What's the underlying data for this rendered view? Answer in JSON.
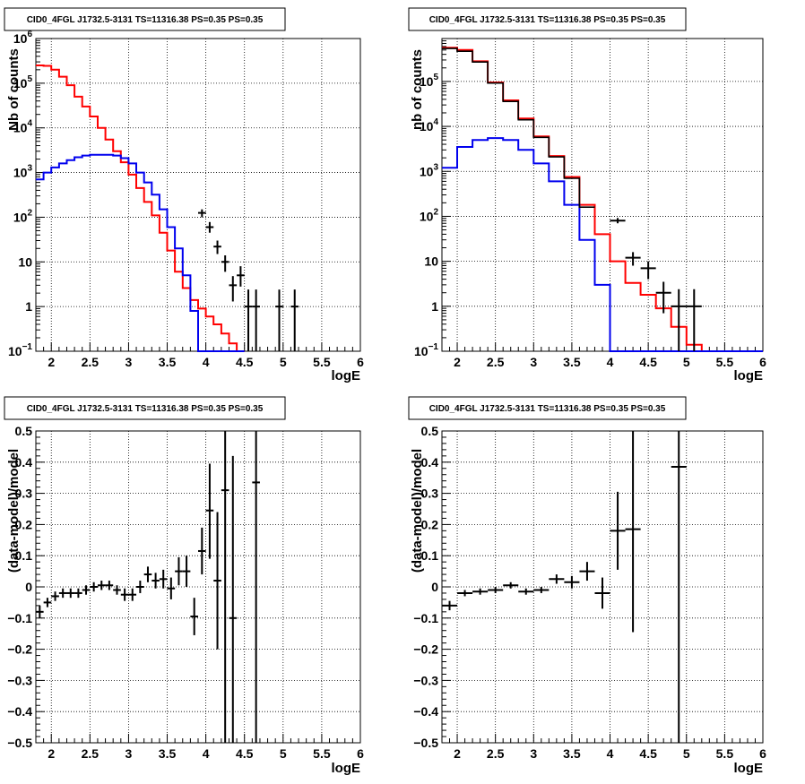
{
  "chart_data": [
    {
      "type": "line",
      "title": "CID0_4FGL J1732.5-3131 TS=11316.38 PS=0.35 PS=0.35",
      "xlabel": "logE",
      "ylabel": "Nb of counts",
      "xlim": [
        1.8,
        6.0
      ],
      "ylim": [
        0.1,
        1000000
      ],
      "yscale": "log",
      "grid": true,
      "xticks": [
        "2",
        "2.5",
        "3",
        "3.5",
        "4",
        "4.5",
        "5",
        "5.5",
        "6"
      ],
      "yticks": [
        {
          "v": 0.1,
          "label": "10",
          "sup": "−1"
        },
        {
          "v": 1,
          "label": "1",
          "sup": ""
        },
        {
          "v": 10,
          "label": "10",
          "sup": ""
        },
        {
          "v": 100,
          "label": "10",
          "sup": "2"
        },
        {
          "v": 1000,
          "label": "10",
          "sup": "3"
        },
        {
          "v": 10000,
          "label": "10",
          "sup": "4"
        },
        {
          "v": 100000,
          "label": "10",
          "sup": "5"
        },
        {
          "v": 1000000,
          "label": "10",
          "sup": "6"
        }
      ],
      "bin_edges_start": 1.8,
      "bin_width": 0.1,
      "series": [
        {
          "color": "#ff0000",
          "kind": "step",
          "values": [
            250000,
            245000,
            200000,
            140000,
            90000,
            50000,
            30000,
            18000,
            10000,
            5500,
            3000,
            1700,
            900,
            450,
            220,
            110,
            45,
            18,
            6,
            2.6,
            1.4,
            0.9,
            0.6,
            0.4,
            0.25,
            0.15,
            0.1
          ]
        },
        {
          "color": "#0000ee",
          "kind": "step",
          "values": [
            700,
            1000,
            1300,
            1600,
            1900,
            2200,
            2400,
            2500,
            2500,
            2500,
            2400,
            2100,
            1600,
            1000,
            600,
            320,
            150,
            60,
            20,
            5,
            0.8,
            0.1,
            0.1,
            0.1,
            0.1,
            0.1,
            0.1
          ]
        },
        {
          "color": "#000000",
          "kind": "points",
          "points": [
            {
              "x": 3.95,
              "y": 125,
              "lo": 100,
              "hi": 150
            },
            {
              "x": 4.05,
              "y": 60,
              "lo": 45,
              "hi": 78
            },
            {
              "x": 4.15,
              "y": 22,
              "lo": 15,
              "hi": 30
            },
            {
              "x": 4.25,
              "y": 10,
              "lo": 6,
              "hi": 14
            },
            {
              "x": 4.35,
              "y": 3,
              "lo": 1.3,
              "hi": 4.8
            },
            {
              "x": 4.45,
              "y": 5,
              "lo": 2.8,
              "hi": 8
            },
            {
              "x": 4.55,
              "y": 1,
              "lo": 0.1,
              "hi": 2.4
            },
            {
              "x": 4.65,
              "y": 1,
              "lo": 0.1,
              "hi": 2.4
            },
            {
              "x": 4.95,
              "y": 1,
              "lo": 0.1,
              "hi": 2.4
            },
            {
              "x": 5.15,
              "y": 1,
              "lo": 0.1,
              "hi": 2.4
            }
          ]
        }
      ]
    },
    {
      "type": "line",
      "title": "CID0_4FGL J1732.5-3131 TS=11316.38 PS=0.35 PS=0.35",
      "xlabel": "logE",
      "ylabel": "nb of counts",
      "xlim": [
        1.8,
        6.0
      ],
      "ylim": [
        0.1,
        900000
      ],
      "yscale": "log",
      "grid": true,
      "xticks": [
        "2",
        "2.5",
        "3",
        "3.5",
        "4",
        "4.5",
        "5",
        "5.5",
        "6"
      ],
      "yticks": [
        {
          "v": 0.1,
          "label": "10",
          "sup": "−1"
        },
        {
          "v": 1,
          "label": "1",
          "sup": ""
        },
        {
          "v": 10,
          "label": "10",
          "sup": ""
        },
        {
          "v": 100,
          "label": "10",
          "sup": "2"
        },
        {
          "v": 1000,
          "label": "10",
          "sup": "3"
        },
        {
          "v": 10000,
          "label": "10",
          "sup": "4"
        },
        {
          "v": 100000,
          "label": "10",
          "sup": "5"
        }
      ],
      "bin_edges_start": 1.8,
      "bin_width": 0.2,
      "series": [
        {
          "color": "#ff0000",
          "kind": "step",
          "values": [
            560000,
            500000,
            280000,
            95000,
            38000,
            15000,
            6000,
            2200,
            750,
            180,
            40,
            10,
            3.3,
            1.8,
            0.9,
            0.35,
            0.14,
            0.1,
            0.1,
            0.1,
            0.1
          ]
        },
        {
          "color": "#0000ee",
          "kind": "step",
          "values": [
            1200,
            3500,
            5000,
            5500,
            5000,
            3000,
            1500,
            600,
            180,
            30,
            3,
            0.1,
            0.1,
            0.1,
            0.1,
            0.1,
            0.1,
            0.1,
            0.1,
            0.1,
            0.1
          ]
        },
        {
          "color": "#000000",
          "kind": "step-partial",
          "values": [
            540000,
            470000,
            270000,
            92000,
            36000,
            14000,
            5700,
            2100,
            700,
            160
          ]
        },
        {
          "color": "#000000",
          "kind": "points",
          "points": [
            {
              "x": 4.1,
              "y": 80,
              "lo": 70,
              "hi": 92
            },
            {
              "x": 4.3,
              "y": 12,
              "lo": 8,
              "hi": 16
            },
            {
              "x": 4.5,
              "y": 7,
              "lo": 4,
              "hi": 10
            },
            {
              "x": 4.7,
              "y": 2,
              "lo": 0.7,
              "hi": 3.5
            },
            {
              "x": 4.9,
              "y": 1,
              "lo": 0.1,
              "hi": 2.4
            },
            {
              "x": 5.1,
              "y": 1,
              "lo": 0.1,
              "hi": 2.4
            }
          ]
        }
      ]
    },
    {
      "type": "scatter",
      "title": "CID0_4FGL J1732.5-3131 TS=11316.38 PS=0.35 PS=0.35",
      "xlabel": "logE",
      "ylabel": "(data-model)/model",
      "xlim": [
        1.8,
        6.0
      ],
      "ylim": [
        -0.5,
        0.5
      ],
      "yscale": "linear",
      "grid": true,
      "xticks": [
        "2",
        "2.5",
        "3",
        "3.5",
        "4",
        "4.5",
        "5",
        "5.5",
        "6"
      ],
      "yticks": [
        {
          "v": 0.5,
          "label": "0.5"
        },
        {
          "v": 0.4,
          "label": "0.4"
        },
        {
          "v": 0.3,
          "label": "0.3"
        },
        {
          "v": 0.2,
          "label": "0.2"
        },
        {
          "v": 0.1,
          "label": "0.1"
        },
        {
          "v": 0,
          "label": "0"
        },
        {
          "v": -0.1,
          "label": "−0.1"
        },
        {
          "v": -0.2,
          "label": "−0.2"
        },
        {
          "v": -0.3,
          "label": "−0.3"
        },
        {
          "v": -0.4,
          "label": "−0.4"
        },
        {
          "v": -0.5,
          "label": "−0.5"
        }
      ],
      "xerr": 0.05,
      "series": [
        {
          "color": "#000000",
          "kind": "errorbars",
          "points": [
            {
              "x": 1.85,
              "y": -0.08,
              "lo": -0.1,
              "hi": -0.06
            },
            {
              "x": 1.95,
              "y": -0.05,
              "lo": -0.065,
              "hi": -0.035
            },
            {
              "x": 2.05,
              "y": -0.03,
              "lo": -0.045,
              "hi": -0.015
            },
            {
              "x": 2.15,
              "y": -0.02,
              "lo": -0.035,
              "hi": -0.005
            },
            {
              "x": 2.25,
              "y": -0.02,
              "lo": -0.035,
              "hi": -0.005
            },
            {
              "x": 2.35,
              "y": -0.02,
              "lo": -0.035,
              "hi": -0.005
            },
            {
              "x": 2.45,
              "y": -0.01,
              "lo": -0.025,
              "hi": 0.005
            },
            {
              "x": 2.55,
              "y": 0,
              "lo": -0.015,
              "hi": 0.015
            },
            {
              "x": 2.65,
              "y": 0.005,
              "lo": -0.01,
              "hi": 0.02
            },
            {
              "x": 2.75,
              "y": 0.005,
              "lo": -0.01,
              "hi": 0.02
            },
            {
              "x": 2.85,
              "y": -0.01,
              "lo": -0.025,
              "hi": 0.005
            },
            {
              "x": 2.95,
              "y": -0.025,
              "lo": -0.045,
              "hi": -0.005
            },
            {
              "x": 3.05,
              "y": -0.025,
              "lo": -0.045,
              "hi": -0.005
            },
            {
              "x": 3.15,
              "y": 0,
              "lo": -0.02,
              "hi": 0.02
            },
            {
              "x": 3.25,
              "y": 0.04,
              "lo": 0.015,
              "hi": 0.065
            },
            {
              "x": 3.35,
              "y": 0.02,
              "lo": -0.005,
              "hi": 0.045
            },
            {
              "x": 3.45,
              "y": 0.025,
              "lo": -0.005,
              "hi": 0.055
            },
            {
              "x": 3.55,
              "y": -0.005,
              "lo": -0.04,
              "hi": 0.03
            },
            {
              "x": 3.65,
              "y": 0.05,
              "lo": 0.005,
              "hi": 0.095
            },
            {
              "x": 3.75,
              "y": 0.05,
              "lo": 0,
              "hi": 0.1
            },
            {
              "x": 3.85,
              "y": -0.095,
              "lo": -0.155,
              "hi": -0.035
            },
            {
              "x": 3.95,
              "y": 0.115,
              "lo": 0.04,
              "hi": 0.19
            },
            {
              "x": 4.05,
              "y": 0.245,
              "lo": 0.09,
              "hi": 0.395
            },
            {
              "x": 4.15,
              "y": 0.02,
              "lo": -0.2,
              "hi": 0.24
            },
            {
              "x": 4.25,
              "y": 0.31,
              "lo": -0.5,
              "hi": 0.5
            },
            {
              "x": 4.35,
              "y": -0.1,
              "lo": -0.5,
              "hi": 0.42
            },
            {
              "x": 4.65,
              "y": 0.335,
              "lo": -0.5,
              "hi": 0.5
            }
          ]
        }
      ]
    },
    {
      "type": "scatter",
      "title": "CID0_4FGL J1732.5-3131 TS=11316.38 PS=0.35 PS=0.35",
      "xlabel": "logE",
      "ylabel": "(data-model)/model",
      "xlim": [
        1.8,
        6.0
      ],
      "ylim": [
        -0.5,
        0.5
      ],
      "yscale": "linear",
      "grid": true,
      "xticks": [
        "2",
        "2.5",
        "3",
        "3.5",
        "4",
        "4.5",
        "5",
        "5.5",
        "6"
      ],
      "yticks": [
        {
          "v": 0.5,
          "label": "0.5"
        },
        {
          "v": 0.4,
          "label": "0.4"
        },
        {
          "v": 0.3,
          "label": "0.3"
        },
        {
          "v": 0.2,
          "label": "0.2"
        },
        {
          "v": 0.1,
          "label": "0.1"
        },
        {
          "v": 0,
          "label": "0"
        },
        {
          "v": -0.1,
          "label": "−0.1"
        },
        {
          "v": -0.2,
          "label": "−0.2"
        },
        {
          "v": -0.3,
          "label": "−0.3"
        },
        {
          "v": -0.4,
          "label": "−0.4"
        },
        {
          "v": -0.5,
          "label": "−0.5"
        }
      ],
      "xerr": 0.1,
      "series": [
        {
          "color": "#000000",
          "kind": "errorbars",
          "points": [
            {
              "x": 1.9,
              "y": -0.06,
              "lo": -0.075,
              "hi": -0.045
            },
            {
              "x": 2.1,
              "y": -0.02,
              "lo": -0.03,
              "hi": -0.01
            },
            {
              "x": 2.3,
              "y": -0.015,
              "lo": -0.025,
              "hi": -0.005
            },
            {
              "x": 2.5,
              "y": -0.01,
              "lo": -0.02,
              "hi": 0
            },
            {
              "x": 2.7,
              "y": 0.005,
              "lo": -0.005,
              "hi": 0.015
            },
            {
              "x": 2.9,
              "y": -0.015,
              "lo": -0.025,
              "hi": -0.005
            },
            {
              "x": 3.1,
              "y": -0.01,
              "lo": -0.02,
              "hi": 0
            },
            {
              "x": 3.3,
              "y": 0.025,
              "lo": 0.01,
              "hi": 0.04
            },
            {
              "x": 3.5,
              "y": 0.015,
              "lo": -0.005,
              "hi": 0.035
            },
            {
              "x": 3.7,
              "y": 0.05,
              "lo": 0.02,
              "hi": 0.08
            },
            {
              "x": 3.9,
              "y": -0.02,
              "lo": -0.07,
              "hi": 0.03
            },
            {
              "x": 4.1,
              "y": 0.18,
              "lo": 0.055,
              "hi": 0.305
            },
            {
              "x": 4.3,
              "y": 0.185,
              "lo": -0.145,
              "hi": 0.5
            },
            {
              "x": 4.9,
              "y": 0.385,
              "lo": -0.5,
              "hi": 0.5
            }
          ]
        }
      ]
    }
  ]
}
